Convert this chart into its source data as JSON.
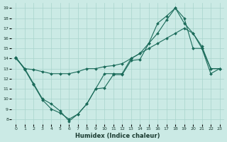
{
  "xlabel": "Humidex (Indice chaleur)",
  "x_ticks": [
    0,
    1,
    2,
    3,
    4,
    5,
    6,
    7,
    8,
    9,
    10,
    11,
    12,
    13,
    14,
    15,
    16,
    17,
    18,
    19,
    20,
    21,
    22,
    23
  ],
  "y_ticks": [
    8,
    9,
    10,
    11,
    12,
    13,
    14,
    15,
    16,
    17,
    18,
    19
  ],
  "ylim": [
    7.5,
    19.5
  ],
  "xlim": [
    -0.5,
    23.5
  ],
  "bg_color": "#cbeae5",
  "line_color": "#1b6b5a",
  "grid_color": "#a8d4cc",
  "line1_x": [
    0,
    1,
    2,
    3,
    4,
    5,
    6,
    7,
    8,
    9,
    10,
    11,
    12,
    13,
    14,
    15,
    16,
    17,
    18,
    19,
    20,
    21,
    22,
    23
  ],
  "line1_y": [
    14.1,
    12.9,
    11.4,
    9.9,
    9.0,
    8.6,
    8.0,
    8.5,
    9.5,
    11.0,
    11.1,
    12.4,
    12.4,
    13.8,
    13.9,
    15.5,
    16.5,
    17.8,
    19.0,
    18.0,
    15.0,
    15.0,
    13.0,
    13.0
  ],
  "line2_x": [
    0,
    1,
    2,
    3,
    4,
    5,
    6,
    7,
    8,
    9,
    10,
    11,
    12,
    13,
    14,
    15,
    16,
    17,
    18,
    19,
    20,
    21,
    22,
    23
  ],
  "line2_y": [
    14.1,
    13.0,
    12.9,
    12.7,
    12.5,
    12.5,
    12.5,
    12.7,
    13.0,
    13.0,
    13.2,
    13.3,
    13.5,
    14.0,
    14.5,
    15.0,
    15.5,
    16.0,
    16.5,
    17.0,
    16.5,
    15.0,
    12.5,
    13.0
  ],
  "line3_x": [
    0,
    1,
    2,
    3,
    4,
    5,
    6,
    7,
    8,
    9,
    10,
    11,
    12,
    13,
    14,
    15,
    16,
    17,
    18,
    19,
    20,
    21,
    22,
    23
  ],
  "line3_y": [
    14.0,
    13.0,
    11.5,
    10.0,
    9.5,
    8.8,
    7.8,
    8.5,
    9.5,
    11.0,
    12.5,
    12.5,
    12.5,
    14.0,
    14.5,
    15.5,
    17.5,
    18.2,
    19.0,
    17.5,
    16.5,
    15.2,
    13.0,
    13.0
  ]
}
